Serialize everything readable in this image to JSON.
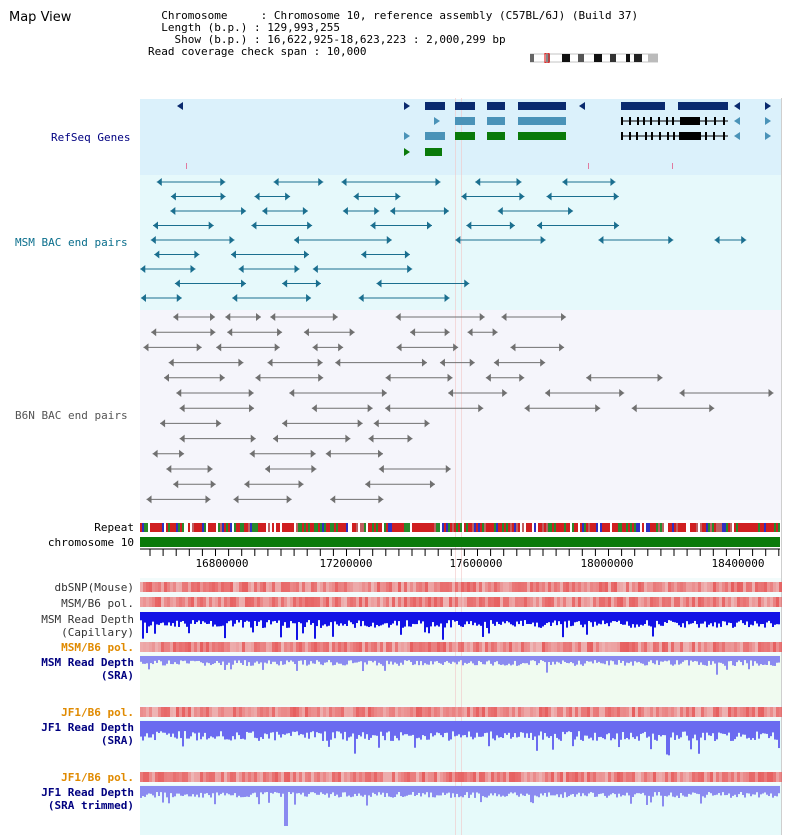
{
  "title": "Map View",
  "info": {
    "lines": [
      "  Chromosome     : Chromosome 10, reference assembly (C57BL/6J) (Build 37)",
      "  Length (b.p.) : 129,993,255",
      "    Show (b.p.) : 16,622,925-18,623,223 : 2,000,299 bp",
      "Read coverage check span : 10,000"
    ]
  },
  "tracks": {
    "refseq": "RefSeq Genes",
    "msm_bac": "MSM BAC end pairs",
    "b6n_bac": "B6N BAC end pairs",
    "repeat": "Repeat",
    "chromosome": "chromosome 10",
    "dbsnp": "dbSNP(Mouse)",
    "msm_b6_pol_1": "MSM/B6 pol.",
    "msm_depth_cap_1": "MSM Read Depth",
    "msm_depth_cap_2": "(Capillary)",
    "msm_b6_pol_2": "MSM/B6 pol.",
    "msm_depth_sra_1": "MSM Read Depth",
    "msm_depth_sra_2": "(SRA)",
    "jf1_b6_pol_1": "JF1/B6 pol.",
    "jf1_depth_sra_1": "JF1 Read Depth",
    "jf1_depth_sra_2": "(SRA)",
    "jf1_b6_pol_2": "JF1/B6 pol.",
    "jf1_depth_trim_1": "JF1 Read Depth",
    "jf1_depth_trim_2": "(SRA trimmed)"
  },
  "axis": {
    "ticks": [
      "16800000",
      "17200000",
      "17600000",
      "18000000",
      "18400000"
    ]
  },
  "colors": {
    "refseq_bg": "#dbf1fb",
    "msm_bac_bg": "#e6f9fb",
    "b6n_bac_bg": "#f5f5fb",
    "depth_bg": "#f0fbf0",
    "msm_label": "#0a6e8c",
    "b6n_label": "#555555",
    "navy_label": "#000080",
    "orange_label": "#e08a00",
    "gene_navy": "#0a2a6e",
    "gene_teal": "#4a93b8",
    "gene_green": "#0a7a0a",
    "chromosome_bar": "#0a7a0a"
  }
}
